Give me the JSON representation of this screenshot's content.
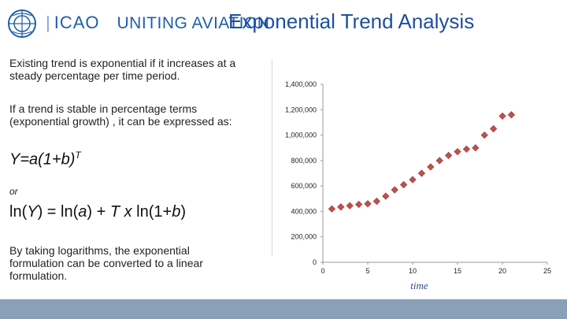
{
  "header": {
    "brand": "ICAO",
    "tagline": "UNITING AVIATION",
    "title": "Exponential Trend Analysis"
  },
  "content": {
    "para1": "Existing trend is exponential if it increases at a steady percentage per time period.",
    "para2": "If a trend is stable in percentage terms (exponential growth) , it can be expressed as:",
    "formula1_base": "Y=a(1+b)",
    "formula1_exp": "T",
    "or": "or",
    "formula2_parts": [
      "ln(",
      "Y",
      ") = ln(",
      "a",
      ") + ",
      "T x",
      " ln(1+",
      "b",
      ")"
    ],
    "para3": "By taking logarithms, the exponential formulation can be converted to a linear formulation."
  },
  "colors": {
    "title": "#1f4fa0",
    "brand": "#1f5fa8",
    "marker": "#c0504d",
    "bottom_bar": "#8aa0b8"
  },
  "chart_data": {
    "type": "scatter",
    "xlabel": "time",
    "ylabel": "",
    "xlim": [
      0,
      25
    ],
    "ylim": [
      0,
      1400000
    ],
    "x_ticks": [
      "0",
      "5",
      "10",
      "15",
      "20",
      "25"
    ],
    "y_ticks": [
      "0",
      "200,000",
      "400,000",
      "600,000",
      "800,000",
      "1,000,000",
      "1,200,000",
      "1,400,000"
    ],
    "x": [
      1,
      2,
      3,
      4,
      5,
      6,
      7,
      8,
      9,
      10,
      11,
      12,
      13,
      14,
      15,
      16,
      17,
      18,
      19,
      20,
      21
    ],
    "y": [
      420000,
      435000,
      445000,
      455000,
      460000,
      480000,
      520000,
      570000,
      610000,
      650000,
      700000,
      750000,
      800000,
      840000,
      870000,
      890000,
      900000,
      1000000,
      1050000,
      1150000,
      1160000
    ]
  }
}
